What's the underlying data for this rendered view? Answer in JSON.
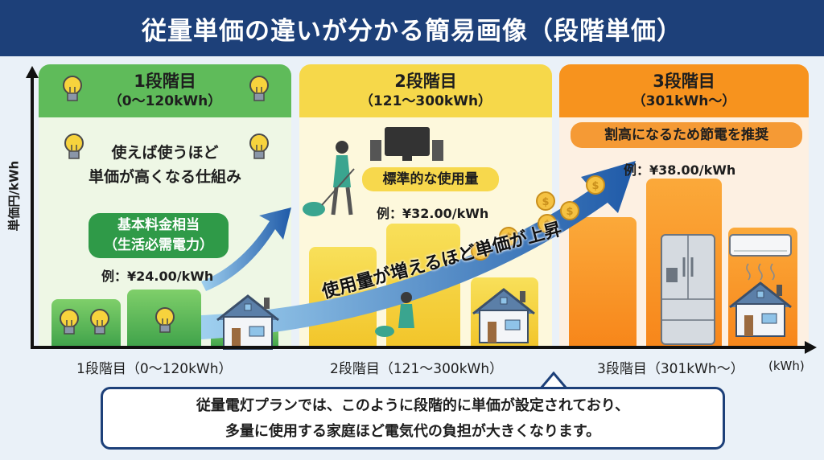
{
  "title": "従量単価の違いが分かる簡易画像（段階単価）",
  "y_axis_label": "単価円/kWh",
  "x_axis_unit": "(kWh)",
  "colors": {
    "header": "#1d4079",
    "tier1": "#5cb85c",
    "tier2": "#f5d94a",
    "tier3": "#f7931e",
    "arrow": "#2a6db5"
  },
  "tiers": [
    {
      "name": "1段階目",
      "range": "（0～120kWh）",
      "note_lines": [
        "使えば使うほど",
        "単価が高くなる仕組み"
      ],
      "badge_lines": [
        "基本料金相当",
        "（生活必需電力）"
      ],
      "price": "例：¥24.00/kWh",
      "axis_label": "1段階目（0～120kWh）"
    },
    {
      "name": "2段階目",
      "range": "（121～300kWh）",
      "badge": "標準的な使用量",
      "price": "例：¥32.00/kWh",
      "axis_label": "2段階目（121～300kWh）"
    },
    {
      "name": "3段階目",
      "range": "（301kWh～）",
      "badge": "割高になるため節電を推奨",
      "price": "例：¥38.00/kWh",
      "axis_label": "3段階目（301kWh～）"
    }
  ],
  "arrow_text": "使用量が増えるほど単価が上昇",
  "callout": [
    "従量電灯プランでは、このように段階的に単価が設定されており、",
    "多量に使用する家庭ほど電気代の負担が大きくなります。"
  ],
  "icons": [
    "lightbulb-icon",
    "house-icon",
    "coin-icon",
    "tv-icon",
    "vacuum-person-icon",
    "refrigerator-icon",
    "air-conditioner-icon"
  ]
}
